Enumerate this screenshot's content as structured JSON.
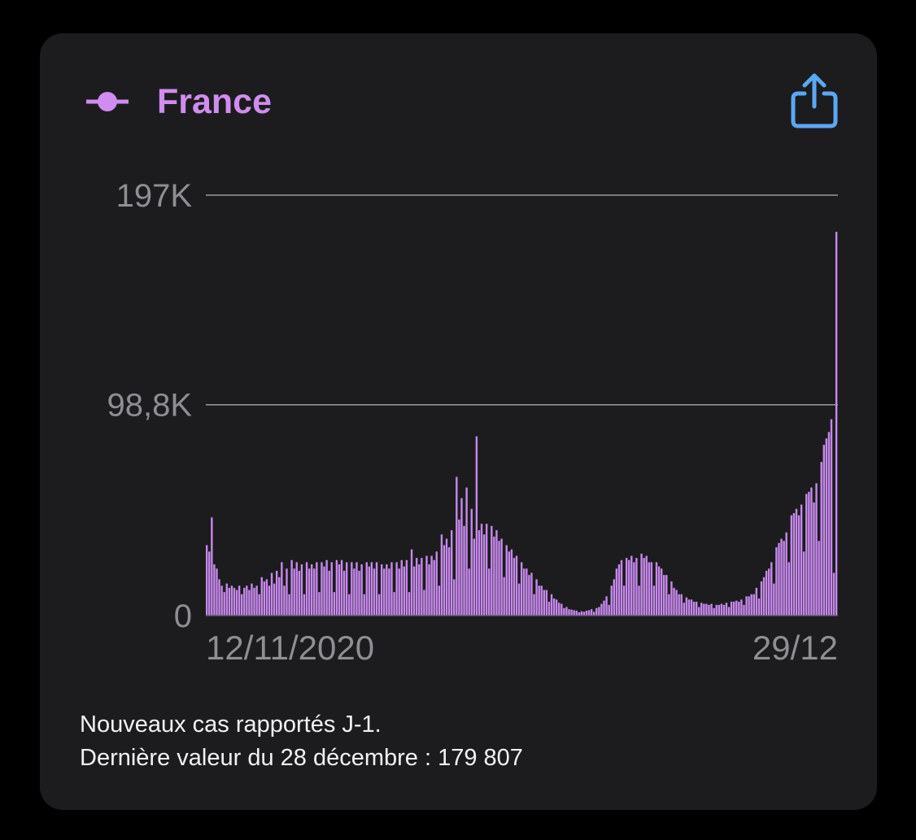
{
  "colors": {
    "background": "#000000",
    "card": "#1c1c1e",
    "accent": "#d08cf0",
    "bar": "#c789ec",
    "share_icon": "#5aa8f5",
    "axis_text": "#8e8e93",
    "grid": "#9a9a9f"
  },
  "header": {
    "series_name": "France",
    "legend_icon": "line-dot-icon",
    "share_icon": "share-icon"
  },
  "caption": {
    "line1": "Nouveaux cas rapportés J-1.",
    "line2": "Dernière valeur du 28 décembre : 179 807"
  },
  "chart_data": {
    "type": "bar",
    "x_start": "12/11/2020",
    "x_end": "29/12",
    "y_ticks": [
      {
        "value": 0,
        "label": "0"
      },
      {
        "value": 98800,
        "label": "98,8K"
      },
      {
        "value": 197000,
        "label": "197K"
      }
    ],
    "ylim": [
      0,
      197000
    ],
    "grid": true,
    "series": [
      {
        "values": [
          33000,
          30000,
          46000,
          24000,
          22000,
          17000,
          14000,
          11000,
          15000,
          13000,
          14000,
          13000,
          12000,
          14000,
          10000,
          13000,
          14000,
          12000,
          15000,
          13000,
          14000,
          10000,
          18000,
          16000,
          17000,
          14000,
          20000,
          15000,
          21000,
          18000,
          25000,
          14000,
          22000,
          10000,
          26000,
          22000,
          25000,
          21000,
          24000,
          10000,
          25000,
          22000,
          24000,
          22000,
          25000,
          11000,
          25000,
          23000,
          26000,
          21000,
          25000,
          11000,
          26000,
          24000,
          26000,
          21000,
          25000,
          10000,
          25000,
          22000,
          25000,
          21000,
          24000,
          10000,
          25000,
          23000,
          25000,
          22000,
          25000,
          10000,
          24000,
          22000,
          24000,
          22000,
          25000,
          11000,
          25000,
          22000,
          26000,
          23000,
          26000,
          11000,
          31000,
          23000,
          27000,
          24000,
          27000,
          12000,
          28000,
          24000,
          28000,
          26000,
          30000,
          14000,
          38000,
          33000,
          36000,
          32000,
          40000,
          17000,
          65000,
          45000,
          55000,
          42000,
          60000,
          22000,
          50000,
          36000,
          84000,
          40000,
          43000,
          38000,
          43000,
          22000,
          42000,
          37000,
          40000,
          35000,
          36000,
          18000,
          33000,
          30000,
          31000,
          27000,
          28000,
          15000,
          25000,
          22000,
          22000,
          19000,
          20000,
          10000,
          17000,
          14000,
          14000,
          12000,
          12000,
          6500,
          10000,
          8000,
          7500,
          6000,
          5500,
          3500,
          4000,
          3000,
          2800,
          2500,
          2300,
          1500,
          2000,
          1800,
          2300,
          2500,
          3000,
          1800,
          3500,
          4000,
          5500,
          7000,
          9000,
          5000,
          14000,
          17000,
          22000,
          24000,
          26000,
          14000,
          27000,
          26000,
          28000,
          25000,
          27000,
          14000,
          29000,
          27000,
          28000,
          25000,
          25000,
          14000,
          25000,
          23000,
          22000,
          19000,
          19000,
          10000,
          16000,
          13000,
          12000,
          10000,
          10000,
          6000,
          8500,
          7500,
          7500,
          6500,
          6500,
          4000,
          6000,
          5500,
          5500,
          5000,
          5500,
          3500,
          5000,
          5000,
          5500,
          5000,
          6000,
          4000,
          6500,
          6500,
          7000,
          6500,
          7500,
          5000,
          9000,
          9000,
          10000,
          10000,
          13000,
          8000,
          16000,
          18000,
          21000,
          22000,
          25000,
          15000,
          32000,
          34000,
          36000,
          35000,
          39000,
          25000,
          47000,
          48000,
          50000,
          47000,
          52000,
          30000,
          57000,
          58000,
          60000,
          53000,
          62000,
          35000,
          72000,
          80000,
          83000,
          86000,
          92000,
          20000,
          179807
        ]
      }
    ]
  }
}
